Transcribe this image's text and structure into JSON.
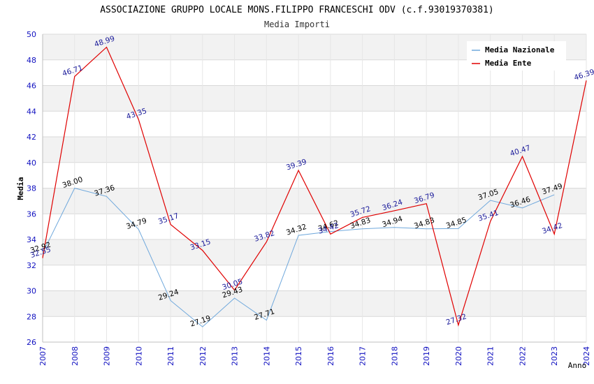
{
  "chart_data": {
    "type": "line",
    "title": "ASSOCIAZIONE GRUPPO LOCALE MONS.FILIPPO FRANCESCHI ODV (c.f.93019370381)",
    "subtitle": "Media Importi",
    "xlabel": "Anno",
    "ylabel": "Media",
    "ylim": [
      26,
      50
    ],
    "yticks": [
      "26",
      "28",
      "30",
      "32",
      "34",
      "36",
      "38",
      "40",
      "42",
      "44",
      "46",
      "48",
      "50"
    ],
    "categories": [
      "2007",
      "2008",
      "2009",
      "2010",
      "2011",
      "2012",
      "2013",
      "2014",
      "2015",
      "2016",
      "2017",
      "2018",
      "2019",
      "2020",
      "2021",
      "2022",
      "2023",
      "2024"
    ],
    "grid": true,
    "legend_position": "top-right",
    "series": [
      {
        "name": "Media Nazionale",
        "color": "#6fa8dc",
        "label_color": "#000000",
        "values": [
          32.92,
          38.0,
          37.36,
          34.79,
          29.24,
          27.19,
          29.43,
          27.71,
          34.32,
          34.62,
          34.83,
          34.94,
          34.83,
          34.85,
          37.05,
          36.46,
          37.49,
          null
        ],
        "labels": [
          "32.92",
          "38.00",
          "37.36",
          "34.79",
          "29.24",
          "27.19",
          "29.43",
          "27.71",
          "34.32",
          "34.62",
          "34.83",
          "34.94",
          "34.83",
          "34.85",
          "37.05",
          "36.46",
          "37.49",
          ""
        ]
      },
      {
        "name": "Media Ente",
        "color": "#e00000",
        "label_color": "#1a1a9a",
        "values": [
          32.55,
          46.71,
          48.99,
          43.35,
          35.17,
          33.15,
          30.05,
          33.82,
          39.39,
          34.42,
          35.72,
          36.24,
          36.79,
          27.32,
          35.41,
          40.47,
          34.42,
          46.39
        ],
        "labels": [
          "32.55",
          "46.71",
          "48.99",
          "43.35",
          "35.17",
          "33.15",
          "30.05",
          "33.82",
          "39.39",
          "34.42",
          "35.72",
          "36.24",
          "36.79",
          "27.32",
          "35.41",
          "40.47",
          "34.42",
          "46.39"
        ]
      }
    ]
  }
}
